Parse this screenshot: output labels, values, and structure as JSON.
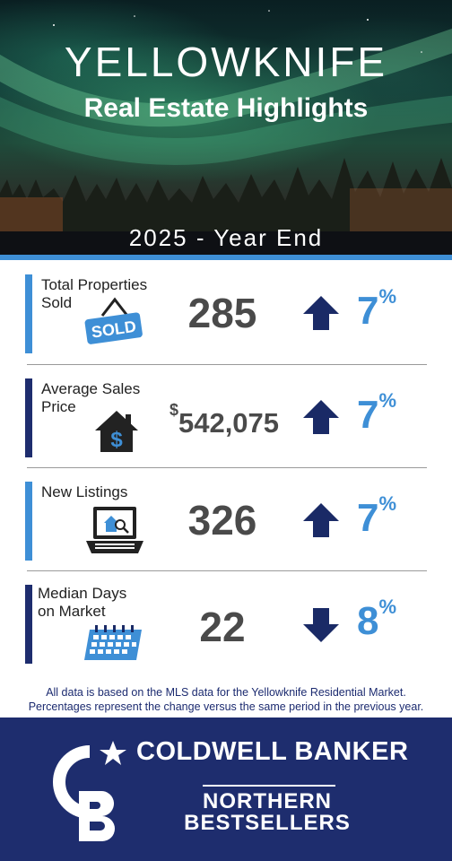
{
  "header": {
    "title": "YELLOWKNIFE",
    "subtitle": "Real Estate Highlights",
    "period": "2025 - Year End"
  },
  "stats": [
    {
      "label_line1": "Total Properties",
      "label_line2": "Sold",
      "icon": "sold-sign-icon",
      "sign_text": "SOLD",
      "value": "285",
      "direction": "up",
      "change": "7",
      "change_unit": "%"
    },
    {
      "label_line1": "Average Sales",
      "label_line2": "Price",
      "icon": "house-dollar-icon",
      "icon_text": "$",
      "currency": "$",
      "value": "542,075",
      "direction": "up",
      "change": "7",
      "change_unit": "%"
    },
    {
      "label_line1": "New Listings",
      "label_line2": "",
      "icon": "laptop-listing-icon",
      "value": "326",
      "direction": "up",
      "change": "7",
      "change_unit": "%"
    },
    {
      "label_line1": "Median Days",
      "label_line2": "on Market",
      "icon": "calendar-icon",
      "value": "22",
      "direction": "down",
      "change": "8",
      "change_unit": "%"
    }
  ],
  "footnote": {
    "line1": "All data is based on the MLS data for the Yellowknife Residential Market.",
    "line2": "Percentages represent the change versus the same period in the previous year."
  },
  "brand": {
    "name": "COLDWELL BANKER",
    "line1": "NORTHERN",
    "line2": "BESTSELLERS"
  },
  "colors": {
    "accent_blue": "#3e8fd6",
    "navy": "#1e2d6e",
    "arrow_navy": "#1a2a66",
    "value_gray": "#4a4a4a"
  }
}
